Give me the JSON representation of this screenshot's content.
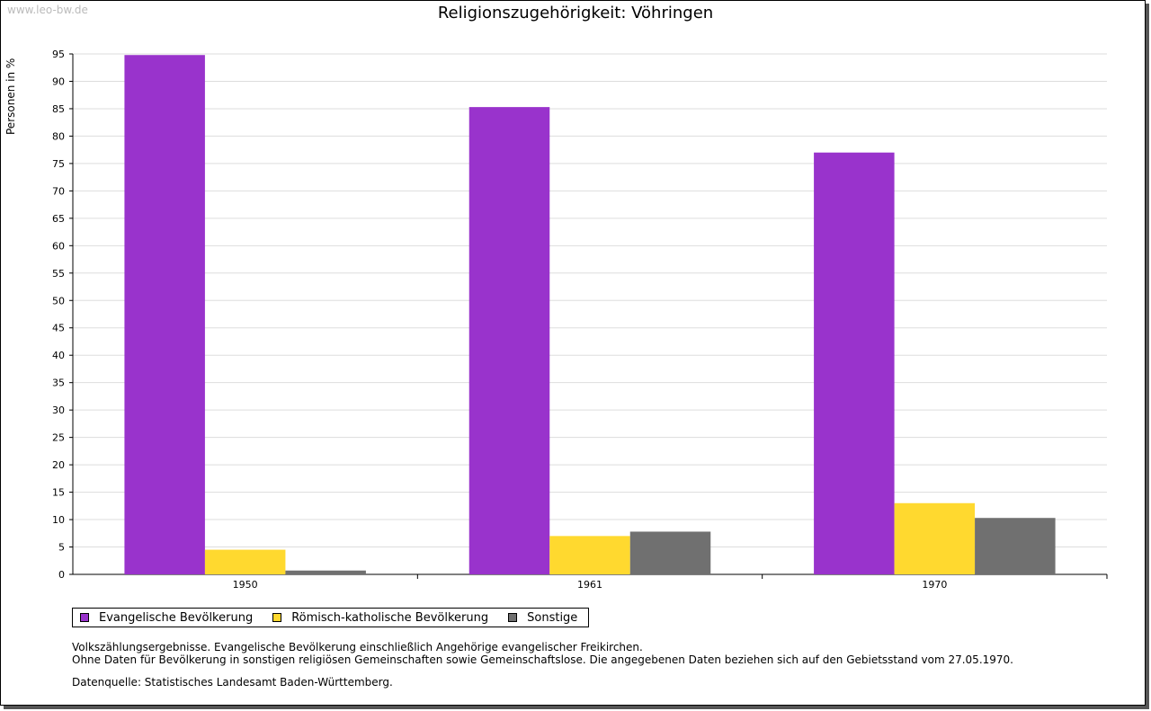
{
  "watermark": "www.leo-bw.de",
  "chart_data": {
    "type": "bar",
    "title": "Religionszugehörigkeit: Vöhringen",
    "xlabel": "",
    "ylabel": "Personen in %",
    "categories": [
      "1950",
      "1961",
      "1970"
    ],
    "series": [
      {
        "name": "Evangelische Bevölkerung",
        "color": "#9933cc",
        "values": [
          94.8,
          85.3,
          77.0
        ]
      },
      {
        "name": "Römisch-katholische Bevölkerung",
        "color": "#ffd92f",
        "values": [
          4.5,
          7.0,
          13.0
        ]
      },
      {
        "name": "Sonstige",
        "color": "#707070",
        "values": [
          0.7,
          7.8,
          10.3
        ]
      }
    ],
    "ylim": [
      0,
      95
    ],
    "yticks": [
      0,
      5,
      10,
      15,
      20,
      25,
      30,
      35,
      40,
      45,
      50,
      55,
      60,
      65,
      70,
      75,
      80,
      85,
      90,
      95
    ],
    "grid": true,
    "legend_position": "bottom-left"
  },
  "notes": {
    "line1": "Volkszählungsergebnisse. Evangelische Bevölkerung einschließlich Angehörige evangelischer Freikirchen.",
    "line2": "Ohne Daten für Bevölkerung in sonstigen religiösen Gemeinschaften sowie Gemeinschaftslose. Die angegebenen Daten beziehen sich auf den Gebietsstand vom 27.05.1970.",
    "source": "Datenquelle: Statistisches Landesamt Baden-Württemberg."
  }
}
